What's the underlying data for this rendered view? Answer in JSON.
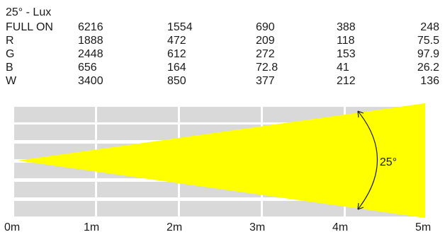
{
  "title": "25° - Lux",
  "rows": [
    {
      "label": "FULL ON",
      "values": [
        "6216",
        "1554",
        "690",
        "388",
        "248"
      ]
    },
    {
      "label": "R",
      "values": [
        "1888",
        "472",
        "209",
        "118",
        "75.5"
      ]
    },
    {
      "label": "G",
      "values": [
        "2448",
        "612",
        "272",
        "153",
        "97.9"
      ]
    },
    {
      "label": "B",
      "values": [
        "656",
        "164",
        "72.8",
        "41",
        "26.2"
      ]
    },
    {
      "label": "W",
      "values": [
        "3400",
        "850",
        "377",
        "212",
        "136"
      ]
    }
  ],
  "beam_angle_label": "25°",
  "distance_labels": [
    "0m",
    "1m",
    "2m",
    "3m",
    "4m",
    "5m"
  ],
  "colors": {
    "grid": "#d9d9d9",
    "beam": "#ffff00",
    "text": "#1a1a1a"
  }
}
